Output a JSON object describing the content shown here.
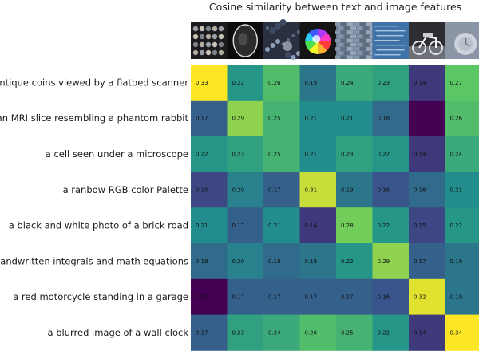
{
  "chart_data": {
    "type": "heatmap",
    "title": "Cosine similarity between text and image features",
    "rows": [
      "antique coins viewed by a flatbed scanner",
      "an MRI slice resembling a phantom rabbit",
      "a cell seen under a microscope",
      "a ranbow RGB color Palette",
      "a black and white photo of a brick road",
      "handwritten integrals and math equations",
      "a red motorcycle standing in a garage",
      "a blurred image of a wall clock"
    ],
    "columns": [
      "coins-thumbnail",
      "mri-thumbnail",
      "cell-thumbnail",
      "color-palette-thumbnail",
      "brick-road-thumbnail",
      "math-equations-thumbnail",
      "motorcycle-thumbnail",
      "wall-clock-thumbnail"
    ],
    "values": [
      [
        0.33,
        0.22,
        0.26,
        0.19,
        0.24,
        0.23,
        0.14,
        0.27
      ],
      [
        0.17,
        0.29,
        0.25,
        0.21,
        0.21,
        0.18,
        0.1,
        0.26
      ],
      [
        0.22,
        0.23,
        0.25,
        0.21,
        0.23,
        0.22,
        0.14,
        0.24
      ],
      [
        0.15,
        0.2,
        0.17,
        0.31,
        0.19,
        0.16,
        0.18,
        0.21
      ],
      [
        0.21,
        0.17,
        0.21,
        0.14,
        0.28,
        0.22,
        0.15,
        0.22
      ],
      [
        0.18,
        0.2,
        0.18,
        0.19,
        0.22,
        0.29,
        0.17,
        0.19
      ],
      [
        0.1,
        0.17,
        0.17,
        0.17,
        0.17,
        0.16,
        0.32,
        0.19
      ],
      [
        0.17,
        0.23,
        0.24,
        0.26,
        0.25,
        0.22,
        0.14,
        0.34
      ]
    ],
    "value_labels": [
      [
        "0.33",
        "0.22",
        "0.26",
        "0.19",
        "0.24",
        "0.23",
        "0.14",
        "0.27"
      ],
      [
        "0.17",
        "0.29",
        "0.25",
        "0.21",
        "0.21",
        "0.18",
        "",
        "0.26"
      ],
      [
        "0.22",
        "0.23",
        "0.25",
        "0.21",
        "0.23",
        "0.22",
        "0.14",
        "0.24"
      ],
      [
        "0.15",
        "0.20",
        "0.17",
        "0.31",
        "0.19",
        "0.16",
        "0.18",
        "0.21"
      ],
      [
        "0.21",
        "0.17",
        "0.21",
        "0.14",
        "0.28",
        "0.22",
        "0.15",
        "0.22"
      ],
      [
        "0.18",
        "0.20",
        "0.18",
        "0.19",
        "0.22",
        "0.29",
        "0.17",
        "0.19"
      ],
      [
        "0.10",
        "0.17",
        "0.17",
        "0.17",
        "0.17",
        "0.16",
        "0.32",
        "0.19"
      ],
      [
        "0.17",
        "0.23",
        "0.24",
        "0.26",
        "0.25",
        "0.22",
        "0.14",
        "0.34"
      ]
    ],
    "colormap": "viridis",
    "color_range": [
      0.1,
      0.33
    ],
    "grid": false,
    "legend": "none"
  }
}
